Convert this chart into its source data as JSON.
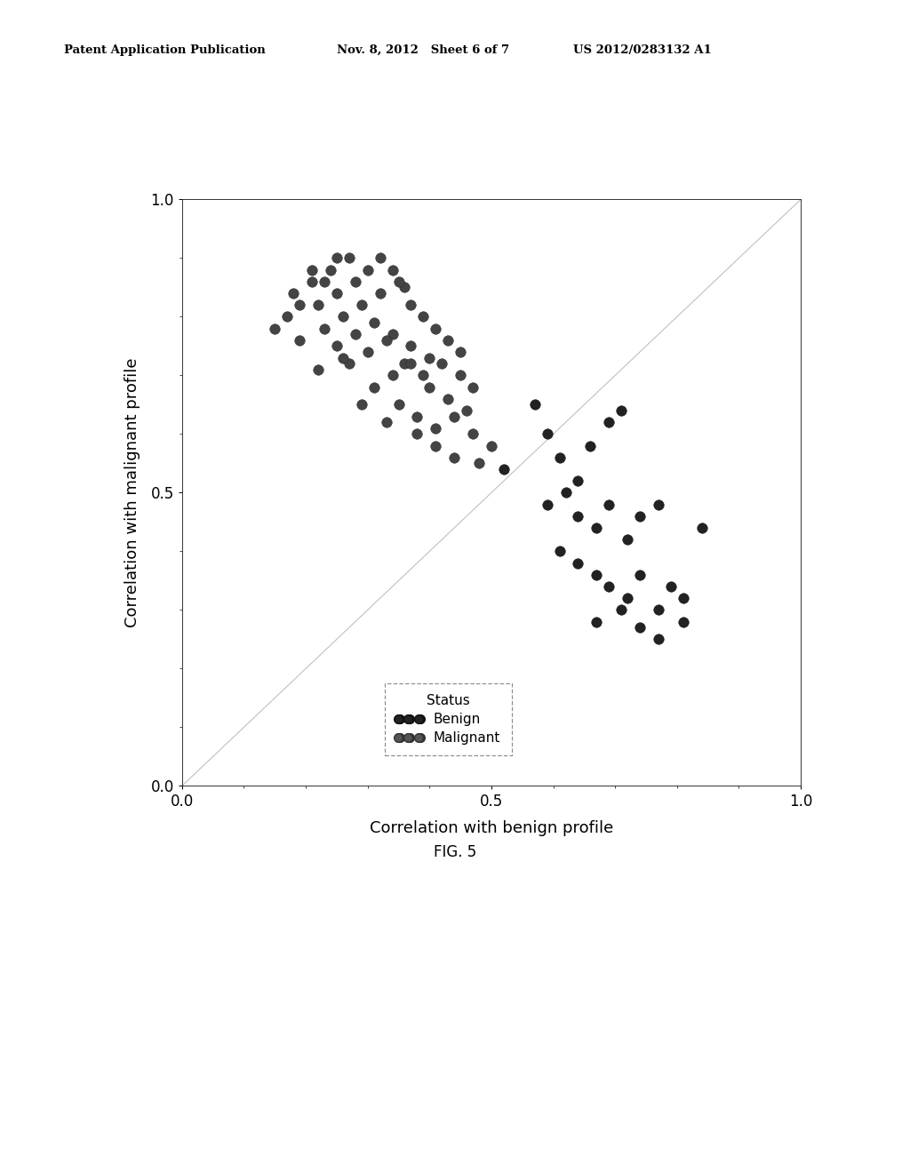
{
  "header_left": "Patent Application Publication",
  "header_mid": "Nov. 8, 2012   Sheet 6 of 7",
  "header_right": "US 2012/0283132 A1",
  "xlabel": "Correlation with benign profile",
  "ylabel": "Correlation with malignant profile",
  "fig_caption": "FIG. 5",
  "legend_title": "Status",
  "xlim": [
    0.0,
    1.0
  ],
  "ylim": [
    0.0,
    1.0
  ],
  "xticks": [
    0.0,
    0.5,
    1.0
  ],
  "yticks": [
    0.0,
    0.5,
    1.0
  ],
  "background_color": "#ffffff",
  "malignant_x": [
    0.15,
    0.17,
    0.19,
    0.21,
    0.23,
    0.25,
    0.18,
    0.21,
    0.24,
    0.27,
    0.19,
    0.22,
    0.25,
    0.28,
    0.3,
    0.32,
    0.34,
    0.36,
    0.23,
    0.26,
    0.29,
    0.32,
    0.35,
    0.37,
    0.39,
    0.41,
    0.25,
    0.28,
    0.31,
    0.34,
    0.37,
    0.4,
    0.43,
    0.45,
    0.27,
    0.3,
    0.33,
    0.36,
    0.39,
    0.42,
    0.45,
    0.47,
    0.31,
    0.34,
    0.37,
    0.4,
    0.43,
    0.46,
    0.35,
    0.38,
    0.41,
    0.44,
    0.47,
    0.5,
    0.38,
    0.41,
    0.44,
    0.48,
    0.22,
    0.26,
    0.29,
    0.33
  ],
  "malignant_y": [
    0.78,
    0.8,
    0.82,
    0.88,
    0.86,
    0.9,
    0.84,
    0.86,
    0.88,
    0.9,
    0.76,
    0.82,
    0.84,
    0.86,
    0.88,
    0.9,
    0.88,
    0.85,
    0.78,
    0.8,
    0.82,
    0.84,
    0.86,
    0.82,
    0.8,
    0.78,
    0.75,
    0.77,
    0.79,
    0.77,
    0.75,
    0.73,
    0.76,
    0.74,
    0.72,
    0.74,
    0.76,
    0.72,
    0.7,
    0.72,
    0.7,
    0.68,
    0.68,
    0.7,
    0.72,
    0.68,
    0.66,
    0.64,
    0.65,
    0.63,
    0.61,
    0.63,
    0.6,
    0.58,
    0.6,
    0.58,
    0.56,
    0.55,
    0.71,
    0.73,
    0.65,
    0.62
  ],
  "benign_x": [
    0.52,
    0.57,
    0.59,
    0.61,
    0.64,
    0.66,
    0.69,
    0.71,
    0.59,
    0.62,
    0.64,
    0.67,
    0.69,
    0.72,
    0.74,
    0.77,
    0.61,
    0.64,
    0.67,
    0.69,
    0.72,
    0.74,
    0.77,
    0.79,
    0.81,
    0.67,
    0.71,
    0.74,
    0.77,
    0.81,
    0.84
  ],
  "benign_y": [
    0.54,
    0.65,
    0.6,
    0.56,
    0.52,
    0.58,
    0.62,
    0.64,
    0.48,
    0.5,
    0.46,
    0.44,
    0.48,
    0.42,
    0.46,
    0.48,
    0.4,
    0.38,
    0.36,
    0.34,
    0.32,
    0.36,
    0.3,
    0.34,
    0.32,
    0.28,
    0.3,
    0.27,
    0.25,
    0.28,
    0.44
  ]
}
